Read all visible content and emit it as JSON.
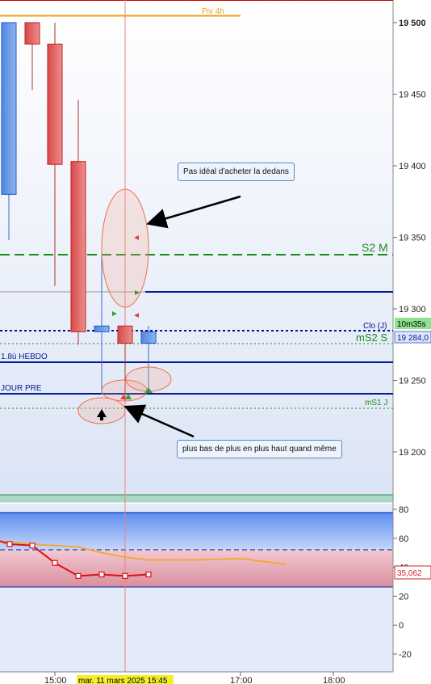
{
  "chart_data": {
    "type": "candlestick",
    "price_axis": {
      "ticks": [
        "19 500",
        "19 450",
        "19 400",
        "19 350",
        "19 300",
        "19 250",
        "19 200"
      ]
    },
    "time_axis": {
      "ticks": [
        "15:00",
        "17:00",
        "18:00"
      ],
      "cursor_label": "mar. 11 mars 2025 15:45"
    },
    "candles": [
      {
        "open": 19380,
        "close": 19500,
        "high": 19500,
        "low": 19348
      },
      {
        "open": 19500,
        "close": 19485,
        "high": 19500,
        "low": 19453
      },
      {
        "open": 19485,
        "close": 19401,
        "high": 19500,
        "low": 19316
      },
      {
        "open": 19403,
        "close": 19284,
        "high": 19446,
        "low": 19275
      },
      {
        "open": 19284,
        "close": 19288,
        "high": 19345,
        "low": 19240
      },
      {
        "open": 19288,
        "close": 19276,
        "high": 19288,
        "low": 19236
      },
      {
        "open": 19276,
        "close": 19284,
        "high": 19288,
        "low": 19242
      }
    ],
    "levels": [
      {
        "label": "Piv 4h",
        "color": "#f0a020",
        "style": "solid"
      },
      {
        "label": "S2 M",
        "color": "#1e8a1e",
        "style": "dashed"
      },
      {
        "label": "",
        "color": "#001a99",
        "style": "solid"
      },
      {
        "label": "Clo (J)",
        "color": "#00108a",
        "style": "dotted"
      },
      {
        "label": "mS2 S",
        "color": "#1e8a1e",
        "style": "dotted"
      },
      {
        "label": "1.8ù HEBDO",
        "color": "#001a99",
        "style": "solid"
      },
      {
        "label": "JOUR PRE",
        "color": "#001a99",
        "style": "solid"
      },
      {
        "label": "mS1 J",
        "color": "#1e8a1e",
        "style": "dotted"
      }
    ],
    "badges": {
      "timer": "10m35s",
      "price": "19 284,0"
    },
    "oscillator": {
      "ticks": [
        "80",
        "60",
        "40",
        "20",
        "0",
        "-20"
      ],
      "value_label": "35,062",
      "line_red": [
        56,
        55,
        43,
        34,
        35,
        34,
        35
      ],
      "line_orange": [
        58,
        56,
        55,
        54,
        50,
        47,
        45,
        45,
        46,
        42
      ]
    }
  },
  "annotations": [
    {
      "text": "Pas idéal d'acheter la dedans"
    },
    {
      "text": "plus bas de plus en plus haut quand même"
    }
  ]
}
